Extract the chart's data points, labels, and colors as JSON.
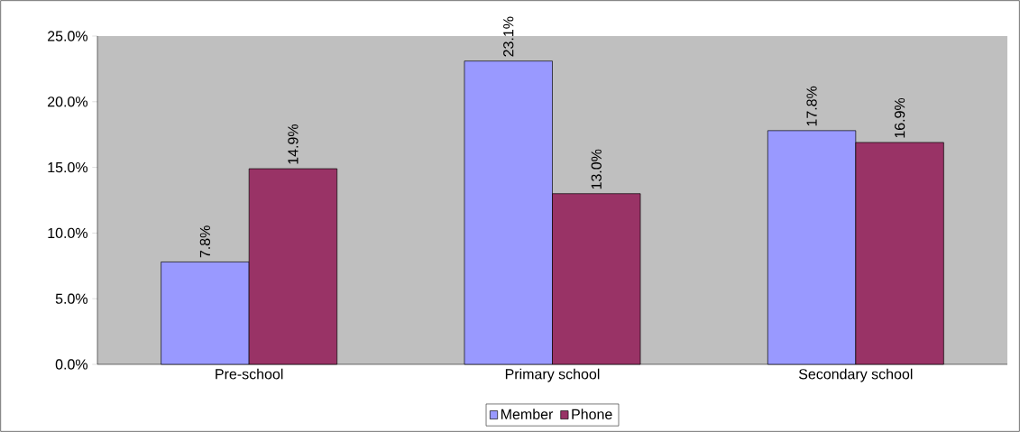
{
  "chart_data": {
    "type": "bar",
    "categories": [
      "Pre-school",
      "Primary school",
      "Secondary school"
    ],
    "series": [
      {
        "name": "Member",
        "color": "#9999ff",
        "values": [
          7.8,
          23.1,
          17.8
        ],
        "value_labels": [
          "7.8%",
          "23.1%",
          "17.8%"
        ]
      },
      {
        "name": "Phone",
        "color": "#993366",
        "values": [
          14.9,
          13.0,
          16.9
        ],
        "value_labels": [
          "14.9%",
          "13.0%",
          "16.9%"
        ]
      }
    ],
    "ylim": [
      0,
      25
    ],
    "yticks": [
      {
        "value": 0,
        "label": "0.0%"
      },
      {
        "value": 5,
        "label": "5.0%"
      },
      {
        "value": 10,
        "label": "10.0%"
      },
      {
        "value": 15,
        "label": "15.0%"
      },
      {
        "value": 20,
        "label": "20.0%"
      },
      {
        "value": 25,
        "label": "25.0%"
      }
    ],
    "legend": "bottom"
  }
}
